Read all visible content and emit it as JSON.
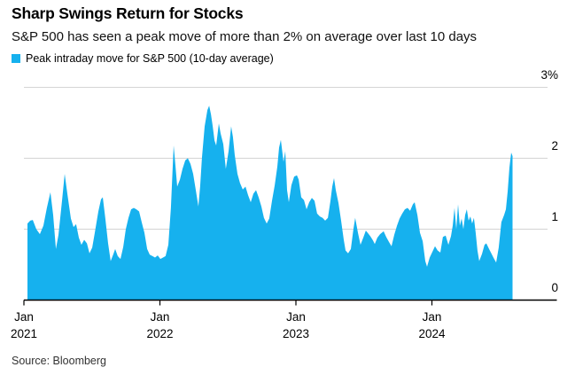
{
  "header": {
    "title": "Sharp Swings Return for Stocks",
    "subtitle": "S&P 500 has seen a peak move of more than 2% on average over last 10 days"
  },
  "legend": {
    "label": "Peak intraday move for S&P 500 (10-day average)",
    "swatch_color": "#16B1EE"
  },
  "footer": {
    "source": "Source: Bloomberg"
  },
  "colors": {
    "area": "#16B1EE",
    "gridline": "#d4d4d4",
    "axis": "#000000"
  },
  "chart_data": {
    "type": "area",
    "title": "Sharp Swings Return for Stocks",
    "series_name": "Peak intraday move for S&P 500 (10-day average)",
    "x_unit": "years since Jan 2021",
    "ylabel": "%",
    "ylim": [
      0,
      3
    ],
    "grid": "horizontal",
    "legend_position": "top-left",
    "y_ticks": [
      {
        "v": 3,
        "label": "3%"
      },
      {
        "v": 2,
        "label": "2"
      },
      {
        "v": 1,
        "label": "1"
      },
      {
        "v": 0,
        "label": "0"
      }
    ],
    "x_ticks": [
      {
        "t": 0,
        "line1": "Jan",
        "line2": "2021"
      },
      {
        "t": 1,
        "line1": "Jan",
        "line2": "2022"
      },
      {
        "t": 2,
        "line1": "Jan",
        "line2": "2023"
      },
      {
        "t": 3,
        "line1": "Jan",
        "line2": "2024"
      }
    ],
    "points": [
      [
        0.026,
        1.08
      ],
      [
        0.046,
        1.12
      ],
      [
        0.065,
        1.13
      ],
      [
        0.091,
        1.0
      ],
      [
        0.117,
        0.93
      ],
      [
        0.143,
        1.05
      ],
      [
        0.169,
        1.3
      ],
      [
        0.195,
        1.52
      ],
      [
        0.215,
        1.2
      ],
      [
        0.235,
        0.72
      ],
      [
        0.254,
        0.92
      ],
      [
        0.28,
        1.4
      ],
      [
        0.3,
        1.78
      ],
      [
        0.319,
        1.5
      ],
      [
        0.345,
        1.15
      ],
      [
        0.365,
        1.03
      ],
      [
        0.384,
        1.07
      ],
      [
        0.404,
        0.88
      ],
      [
        0.423,
        0.78
      ],
      [
        0.443,
        0.85
      ],
      [
        0.463,
        0.8
      ],
      [
        0.482,
        0.66
      ],
      [
        0.502,
        0.74
      ],
      [
        0.521,
        0.95
      ],
      [
        0.547,
        1.25
      ],
      [
        0.567,
        1.42
      ],
      [
        0.58,
        1.45
      ],
      [
        0.599,
        1.15
      ],
      [
        0.619,
        0.8
      ],
      [
        0.638,
        0.55
      ],
      [
        0.658,
        0.65
      ],
      [
        0.671,
        0.72
      ],
      [
        0.69,
        0.62
      ],
      [
        0.71,
        0.58
      ],
      [
        0.73,
        0.75
      ],
      [
        0.749,
        1.0
      ],
      [
        0.769,
        1.16
      ],
      [
        0.788,
        1.28
      ],
      [
        0.808,
        1.3
      ],
      [
        0.827,
        1.28
      ],
      [
        0.847,
        1.25
      ],
      [
        0.866,
        1.1
      ],
      [
        0.886,
        0.95
      ],
      [
        0.906,
        0.72
      ],
      [
        0.925,
        0.64
      ],
      [
        0.945,
        0.62
      ],
      [
        0.964,
        0.6
      ],
      [
        0.984,
        0.63
      ],
      [
        1.003,
        0.58
      ],
      [
        1.023,
        0.6
      ],
      [
        1.042,
        0.62
      ],
      [
        1.062,
        0.78
      ],
      [
        1.081,
        1.3
      ],
      [
        1.101,
        2.18
      ],
      [
        1.114,
        1.9
      ],
      [
        1.127,
        1.6
      ],
      [
        1.147,
        1.7
      ],
      [
        1.166,
        1.85
      ],
      [
        1.186,
        1.97
      ],
      [
        1.205,
        2.0
      ],
      [
        1.225,
        1.92
      ],
      [
        1.244,
        1.78
      ],
      [
        1.264,
        1.55
      ],
      [
        1.283,
        1.32
      ],
      [
        1.296,
        1.6
      ],
      [
        1.309,
        2.0
      ],
      [
        1.329,
        2.45
      ],
      [
        1.349,
        2.68
      ],
      [
        1.362,
        2.74
      ],
      [
        1.375,
        2.62
      ],
      [
        1.388,
        2.45
      ],
      [
        1.401,
        2.25
      ],
      [
        1.414,
        2.18
      ],
      [
        1.433,
        2.49
      ],
      [
        1.446,
        2.35
      ],
      [
        1.466,
        2.2
      ],
      [
        1.485,
        1.85
      ],
      [
        1.505,
        2.1
      ],
      [
        1.524,
        2.45
      ],
      [
        1.537,
        2.3
      ],
      [
        1.55,
        2.05
      ],
      [
        1.57,
        1.78
      ],
      [
        1.589,
        1.65
      ],
      [
        1.609,
        1.56
      ],
      [
        1.629,
        1.6
      ],
      [
        1.648,
        1.48
      ],
      [
        1.668,
        1.38
      ],
      [
        1.687,
        1.5
      ],
      [
        1.707,
        1.55
      ],
      [
        1.726,
        1.45
      ],
      [
        1.746,
        1.32
      ],
      [
        1.765,
        1.16
      ],
      [
        1.785,
        1.08
      ],
      [
        1.804,
        1.15
      ],
      [
        1.824,
        1.4
      ],
      [
        1.844,
        1.62
      ],
      [
        1.863,
        1.88
      ],
      [
        1.876,
        2.15
      ],
      [
        1.889,
        2.26
      ],
      [
        1.909,
        1.95
      ],
      [
        1.922,
        2.1
      ],
      [
        1.935,
        1.55
      ],
      [
        1.948,
        1.38
      ],
      [
        1.967,
        1.62
      ],
      [
        1.987,
        1.74
      ],
      [
        2.007,
        1.76
      ],
      [
        2.02,
        1.7
      ],
      [
        2.039,
        1.45
      ],
      [
        2.059,
        1.41
      ],
      [
        2.078,
        1.28
      ],
      [
        2.098,
        1.38
      ],
      [
        2.117,
        1.44
      ],
      [
        2.137,
        1.4
      ],
      [
        2.156,
        1.22
      ],
      [
        2.176,
        1.18
      ],
      [
        2.196,
        1.16
      ],
      [
        2.215,
        1.12
      ],
      [
        2.235,
        1.16
      ],
      [
        2.254,
        1.4
      ],
      [
        2.267,
        1.6
      ],
      [
        2.28,
        1.72
      ],
      [
        2.293,
        1.55
      ],
      [
        2.313,
        1.37
      ],
      [
        2.332,
        1.12
      ],
      [
        2.352,
        0.85
      ],
      [
        2.365,
        0.7
      ],
      [
        2.384,
        0.66
      ],
      [
        2.404,
        0.72
      ],
      [
        2.423,
        1.0
      ],
      [
        2.436,
        1.16
      ],
      [
        2.456,
        0.95
      ],
      [
        2.475,
        0.78
      ],
      [
        2.495,
        0.88
      ],
      [
        2.514,
        0.98
      ],
      [
        2.527,
        0.95
      ],
      [
        2.547,
        0.9
      ],
      [
        2.567,
        0.84
      ],
      [
        2.58,
        0.79
      ],
      [
        2.599,
        0.88
      ],
      [
        2.619,
        0.93
      ],
      [
        2.645,
        0.97
      ],
      [
        2.664,
        0.89
      ],
      [
        2.684,
        0.82
      ],
      [
        2.703,
        0.76
      ],
      [
        2.723,
        0.92
      ],
      [
        2.743,
        1.05
      ],
      [
        2.762,
        1.15
      ],
      [
        2.782,
        1.22
      ],
      [
        2.801,
        1.28
      ],
      [
        2.821,
        1.3
      ],
      [
        2.84,
        1.26
      ],
      [
        2.86,
        1.35
      ],
      [
        2.873,
        1.38
      ],
      [
        2.893,
        1.2
      ],
      [
        2.912,
        0.95
      ],
      [
        2.932,
        0.83
      ],
      [
        2.951,
        0.55
      ],
      [
        2.964,
        0.47
      ],
      [
        2.984,
        0.6
      ],
      [
        3.003,
        0.68
      ],
      [
        3.023,
        0.76
      ],
      [
        3.042,
        0.7
      ],
      [
        3.062,
        0.67
      ],
      [
        3.081,
        0.89
      ],
      [
        3.101,
        0.91
      ],
      [
        3.121,
        0.78
      ],
      [
        3.14,
        0.9
      ],
      [
        3.153,
        1.05
      ],
      [
        3.166,
        1.3
      ],
      [
        3.179,
        1.0
      ],
      [
        3.192,
        1.35
      ],
      [
        3.205,
        1.05
      ],
      [
        3.218,
        1.15
      ],
      [
        3.231,
        1.0
      ],
      [
        3.244,
        1.2
      ],
      [
        3.257,
        1.28
      ],
      [
        3.27,
        1.12
      ],
      [
        3.283,
        1.18
      ],
      [
        3.296,
        1.08
      ],
      [
        3.309,
        1.16
      ],
      [
        3.322,
        0.95
      ],
      [
        3.335,
        0.7
      ],
      [
        3.348,
        0.55
      ],
      [
        3.368,
        0.65
      ],
      [
        3.387,
        0.78
      ],
      [
        3.4,
        0.8
      ],
      [
        3.42,
        0.72
      ],
      [
        3.439,
        0.65
      ],
      [
        3.452,
        0.6
      ],
      [
        3.472,
        0.53
      ],
      [
        3.491,
        0.74
      ],
      [
        3.511,
        1.1
      ],
      [
        3.531,
        1.2
      ],
      [
        3.544,
        1.28
      ],
      [
        3.557,
        1.53
      ],
      [
        3.57,
        1.87
      ],
      [
        3.583,
        2.08
      ],
      [
        3.593,
        2.03
      ]
    ]
  }
}
